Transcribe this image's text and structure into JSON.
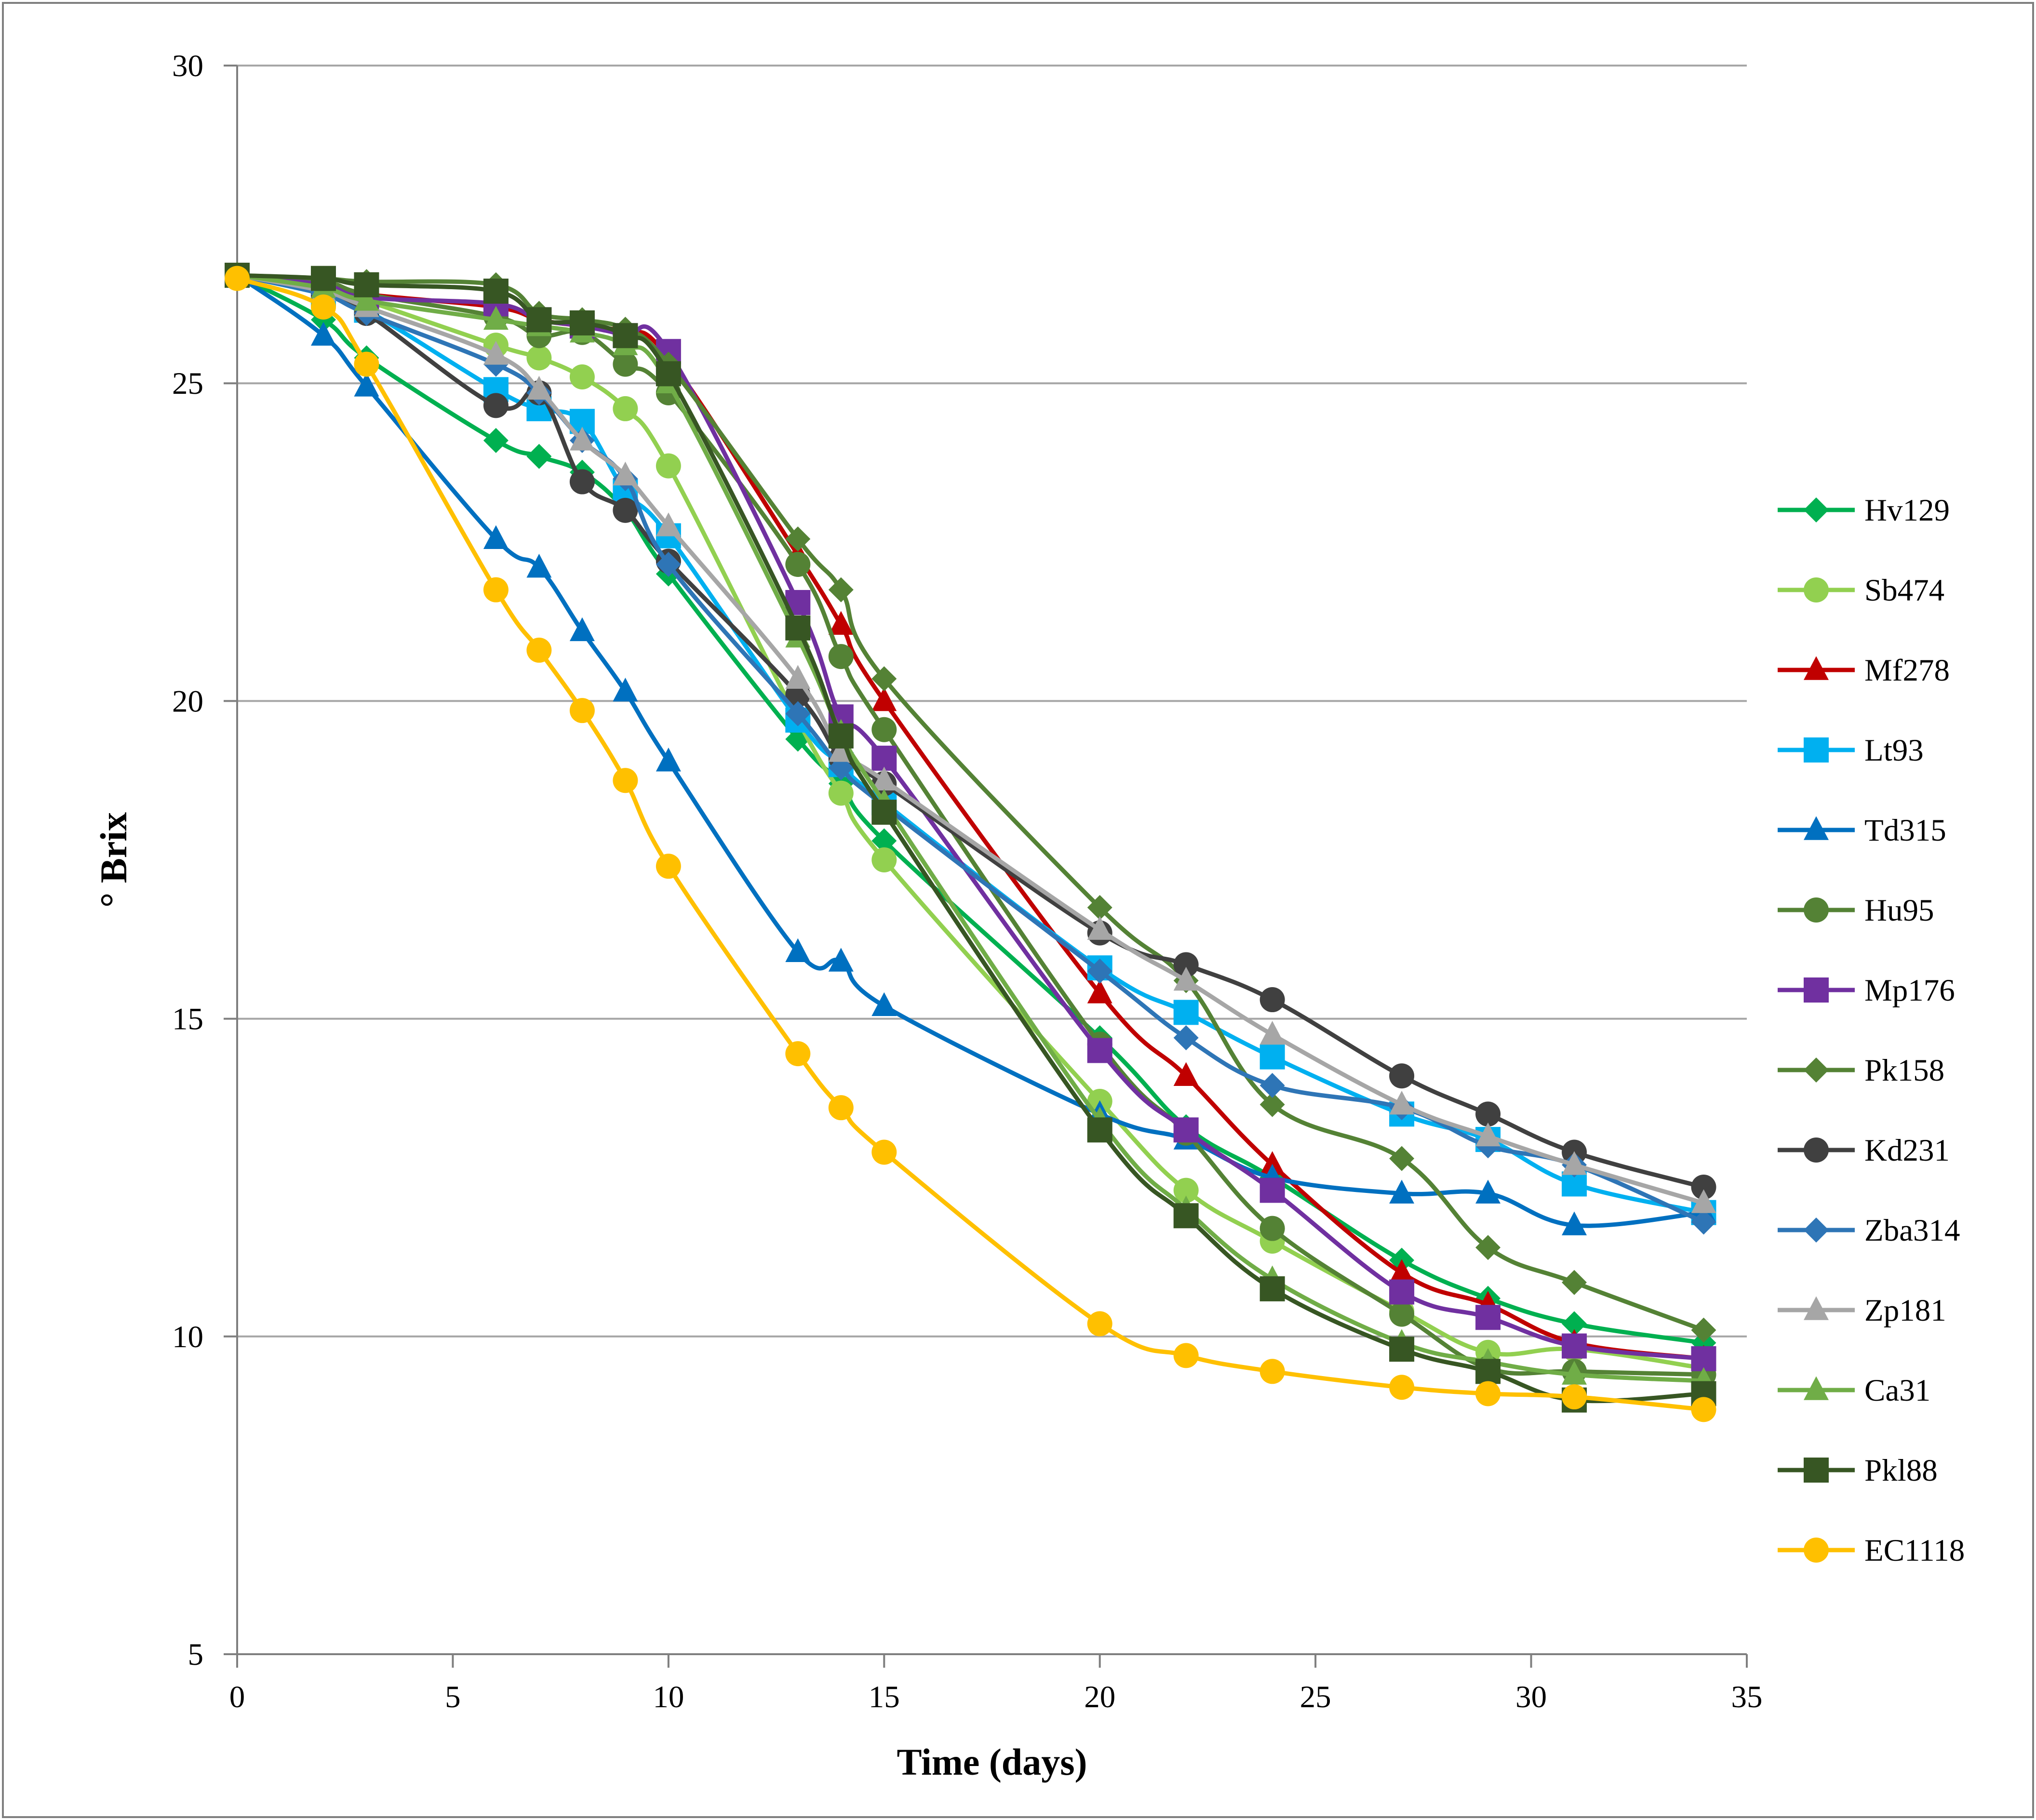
{
  "chart_data": {
    "type": "line",
    "title": "",
    "xlabel": "Time (days)",
    "ylabel": "° Brix",
    "xlim": [
      0,
      35
    ],
    "ylim": [
      5,
      30
    ],
    "xticks": [
      0,
      5,
      10,
      15,
      20,
      25,
      30,
      35
    ],
    "yticks": [
      5,
      10,
      15,
      20,
      25,
      30
    ],
    "xtick_labels": [
      "0",
      "5",
      "10",
      "15",
      "20",
      "25",
      "30",
      "35"
    ],
    "ytick_labels": [
      "5",
      "10",
      "15",
      "20",
      "25",
      "30"
    ],
    "grid": "horizontal",
    "legend_position": "right",
    "series": [
      {
        "name": "Hv129",
        "color": "#00b050",
        "marker": "diamond",
        "x": [
          0,
          2,
          3,
          6,
          7,
          8,
          9,
          10,
          13,
          14,
          15,
          20,
          22,
          24,
          27,
          29,
          31,
          34
        ],
        "values": [
          26.7,
          26.0,
          25.4,
          24.1,
          23.85,
          23.6,
          23.0,
          22.0,
          19.4,
          18.7,
          17.8,
          14.7,
          13.3,
          12.5,
          11.2,
          10.6,
          10.2,
          9.9
        ]
      },
      {
        "name": "Sb474",
        "color": "#92d050",
        "marker": "circle",
        "x": [
          0,
          2,
          3,
          6,
          7,
          8,
          9,
          10,
          13,
          14,
          15,
          20,
          22,
          24,
          27,
          29,
          31,
          34
        ],
        "values": [
          26.7,
          26.5,
          26.3,
          25.6,
          25.4,
          25.1,
          24.6,
          23.7,
          19.7,
          18.55,
          17.5,
          13.7,
          12.3,
          11.5,
          10.4,
          9.75,
          9.8,
          9.5
        ]
      },
      {
        "name": "Mf278",
        "color": "#c00000",
        "marker": "triangle",
        "x": [
          0,
          2,
          3,
          6,
          7,
          8,
          9,
          10,
          13,
          14,
          15,
          20,
          22,
          24,
          27,
          29,
          31,
          34
        ],
        "values": [
          26.7,
          26.55,
          26.4,
          26.2,
          26.0,
          25.9,
          25.8,
          25.4,
          22.3,
          21.2,
          20.0,
          15.4,
          14.1,
          12.7,
          11.0,
          10.5,
          9.9,
          9.65
        ]
      },
      {
        "name": "Lt93",
        "color": "#00b0f0",
        "marker": "square",
        "x": [
          0,
          2,
          3,
          6,
          7,
          8,
          9,
          10,
          13,
          14,
          15,
          20,
          22,
          24,
          27,
          29,
          31,
          34
        ],
        "values": [
          26.7,
          26.4,
          26.15,
          24.9,
          24.6,
          24.4,
          23.3,
          22.6,
          19.7,
          19.0,
          18.4,
          15.8,
          15.1,
          14.4,
          13.5,
          13.1,
          12.4,
          11.95
        ]
      },
      {
        "name": "Td315",
        "color": "#0070c0",
        "marker": "triangle",
        "x": [
          0,
          2,
          3,
          6,
          7,
          8,
          9,
          10,
          13,
          14,
          15,
          20,
          22,
          24,
          27,
          29,
          31,
          34
        ],
        "values": [
          26.7,
          25.75,
          24.95,
          22.55,
          22.1,
          21.1,
          20.15,
          19.05,
          16.05,
          15.9,
          15.2,
          13.5,
          13.1,
          12.5,
          12.25,
          12.25,
          11.75,
          11.95
        ]
      },
      {
        "name": "Hu95",
        "color": "#548235",
        "marker": "circle",
        "x": [
          0,
          2,
          3,
          6,
          7,
          8,
          9,
          10,
          13,
          14,
          15,
          20,
          22,
          24,
          27,
          29,
          31,
          34
        ],
        "values": [
          26.7,
          26.6,
          26.4,
          26.05,
          25.75,
          25.8,
          25.3,
          24.85,
          22.15,
          20.7,
          19.55,
          14.6,
          13.2,
          11.7,
          10.35,
          9.5,
          9.45,
          9.4
        ]
      },
      {
        "name": "Mp176",
        "color": "#7030a0",
        "marker": "square",
        "x": [
          0,
          2,
          3,
          6,
          7,
          8,
          9,
          10,
          13,
          14,
          15,
          20,
          22,
          24,
          27,
          29,
          31,
          34
        ],
        "values": [
          26.7,
          26.55,
          26.35,
          26.25,
          26.0,
          25.9,
          25.75,
          25.5,
          21.55,
          19.75,
          19.1,
          14.5,
          13.25,
          12.3,
          10.7,
          10.3,
          9.85,
          9.65
        ]
      },
      {
        "name": "Pk158",
        "color": "#548235",
        "marker": "diamond",
        "x": [
          0,
          2,
          3,
          6,
          7,
          8,
          9,
          10,
          13,
          14,
          15,
          20,
          22,
          24,
          27,
          29,
          31,
          34
        ],
        "values": [
          26.7,
          26.65,
          26.6,
          26.55,
          26.1,
          26.0,
          25.85,
          25.3,
          22.55,
          21.75,
          20.35,
          16.75,
          15.6,
          13.65,
          12.8,
          11.4,
          10.85,
          10.1
        ]
      },
      {
        "name": "Kd231",
        "color": "#404040",
        "marker": "circle",
        "x": [
          0,
          2,
          3,
          6,
          7,
          8,
          9,
          10,
          13,
          14,
          15,
          20,
          22,
          24,
          27,
          29,
          31,
          34
        ],
        "values": [
          26.7,
          26.4,
          26.1,
          24.65,
          24.85,
          23.45,
          23.0,
          22.2,
          20.1,
          19.1,
          18.7,
          16.35,
          15.85,
          15.3,
          14.1,
          13.5,
          12.9,
          12.35
        ]
      },
      {
        "name": "Zba314",
        "color": "#2e75b6",
        "marker": "diamond",
        "x": [
          0,
          2,
          3,
          6,
          7,
          8,
          9,
          10,
          13,
          14,
          15,
          20,
          22,
          24,
          27,
          29,
          31,
          34
        ],
        "values": [
          26.7,
          26.4,
          26.1,
          25.3,
          24.85,
          24.1,
          23.5,
          22.15,
          19.8,
          18.95,
          18.35,
          15.75,
          14.7,
          13.95,
          13.6,
          13.0,
          12.7,
          11.8
        ]
      },
      {
        "name": "Zp181",
        "color": "#a6a6a6",
        "marker": "triangle",
        "x": [
          0,
          2,
          3,
          6,
          7,
          8,
          9,
          10,
          13,
          14,
          15,
          20,
          22,
          24,
          27,
          29,
          31,
          34
        ],
        "values": [
          26.7,
          26.45,
          26.2,
          25.45,
          24.9,
          24.1,
          23.55,
          22.75,
          20.35,
          19.2,
          18.75,
          16.4,
          15.6,
          14.75,
          13.65,
          13.15,
          12.7,
          12.1
        ]
      },
      {
        "name": "Ca31",
        "color": "#70ad47",
        "marker": "triangle",
        "x": [
          0,
          2,
          3,
          6,
          7,
          8,
          9,
          10,
          13,
          14,
          15,
          20,
          22,
          24,
          27,
          29,
          31,
          34
        ],
        "values": [
          26.7,
          26.5,
          26.3,
          26.0,
          25.9,
          25.8,
          25.6,
          25.0,
          21.0,
          19.5,
          18.4,
          13.4,
          12.0,
          10.9,
          9.9,
          9.6,
          9.4,
          9.3
        ]
      },
      {
        "name": "Pkl88",
        "color": "#375623",
        "marker": "square",
        "x": [
          0,
          2,
          3,
          6,
          7,
          8,
          9,
          10,
          13,
          14,
          15,
          20,
          22,
          24,
          27,
          29,
          31,
          34
        ],
        "values": [
          26.7,
          26.65,
          26.55,
          26.45,
          26.0,
          25.95,
          25.75,
          25.15,
          21.15,
          19.45,
          18.25,
          13.25,
          11.9,
          10.75,
          9.8,
          9.45,
          9.0,
          9.1
        ]
      },
      {
        "name": "EC1118",
        "color": "#ffc000",
        "marker": "circle",
        "x": [
          0,
          2,
          3,
          6,
          7,
          8,
          9,
          10,
          13,
          14,
          15,
          20,
          22,
          24,
          27,
          29,
          31,
          34
        ],
        "values": [
          26.65,
          26.2,
          25.3,
          21.75,
          20.8,
          19.85,
          18.75,
          17.4,
          14.45,
          13.6,
          12.9,
          10.2,
          9.7,
          9.45,
          9.2,
          9.1,
          9.05,
          8.85
        ]
      }
    ]
  }
}
